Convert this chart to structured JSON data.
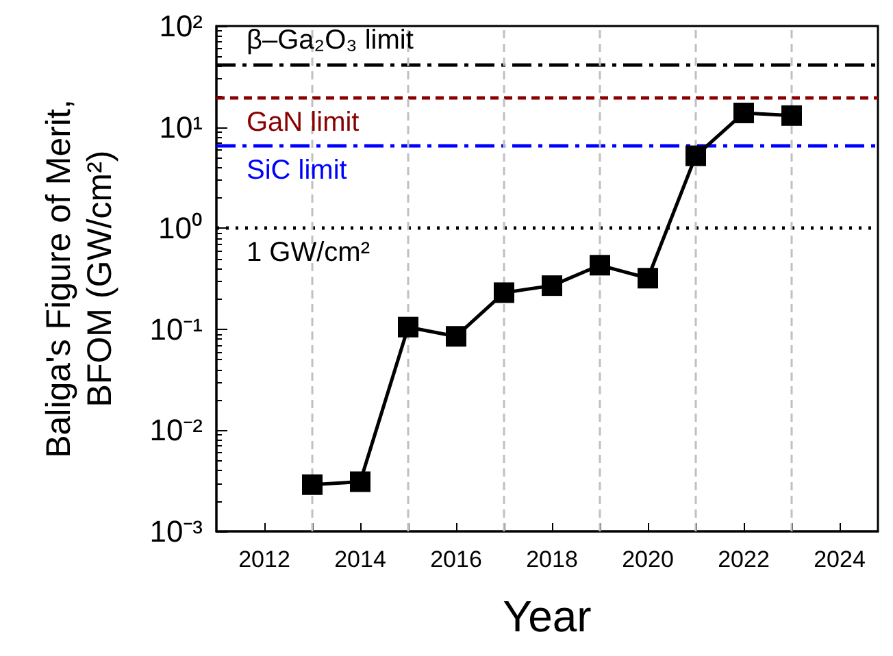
{
  "chart_data": {
    "type": "line",
    "xlabel": "Year",
    "ylabel": "Baliga's Figure of Merit,\nBFOM (GW/cm²)",
    "x": [
      2013,
      2014,
      2015,
      2016,
      2017,
      2018,
      2019,
      2020,
      2021,
      2022,
      2023
    ],
    "series": [
      {
        "color": "#000000",
        "values": [
          0.0029,
          0.0031,
          0.105,
          0.085,
          0.23,
          0.27,
          0.43,
          0.32,
          5.2,
          13.8,
          13
        ]
      }
    ],
    "marker": "square",
    "line_style": "solid",
    "log": "y",
    "grid": false,
    "xlim": [
      2011,
      2024.8
    ],
    "xticks": [
      2012,
      {
        "value": 2013,
        "label": null
      },
      2014,
      {
        "value": 2015,
        "label": null
      },
      2016,
      {
        "value": 2017,
        "label": null
      },
      2018,
      {
        "value": 2019,
        "label": null
      },
      2020,
      {
        "value": 2021,
        "label": null
      },
      2022,
      {
        "value": 2023,
        "label": null
      },
      2024
    ],
    "ylim": [
      0.001,
      100
    ],
    "yticks": [
      {
        "value": 0.001,
        "label": "10⁻³"
      },
      {
        "value": 0.01,
        "label": "10⁻²"
      },
      {
        "value": 0.1,
        "label": "10⁻¹"
      },
      {
        "value": 1,
        "label": "10⁰"
      },
      {
        "value": 10,
        "label": "10¹"
      },
      {
        "value": 100,
        "label": "10²"
      }
    ],
    "ref_lines": [
      {
        "axis": "y",
        "value": 41,
        "label": "β–Ga₂O₃ limit",
        "color": "#000000",
        "line_style": "dashdot"
      },
      {
        "axis": "y",
        "value": 19.5,
        "label": "GaN limit",
        "color": "#8b0000",
        "line_style": "dashed"
      },
      {
        "axis": "y",
        "value": 6.5,
        "label": "SiC limit",
        "color": "#0000ff",
        "line_style": "dashdot"
      },
      {
        "axis": "y",
        "value": 1,
        "label": "1 GW/cm²",
        "color": "#000000",
        "line_style": "dotted"
      },
      {
        "axis": "x",
        "value": 2013,
        "label": null,
        "color": "#c0c0c0",
        "line_style": "dashed"
      },
      {
        "axis": "x",
        "value": 2015,
        "label": null,
        "color": "#c0c0c0",
        "line_style": "dashed"
      },
      {
        "axis": "x",
        "value": 2017,
        "label": null,
        "color": "#c0c0c0",
        "line_style": "dashed"
      },
      {
        "axis": "x",
        "value": 2019,
        "label": null,
        "color": "#c0c0c0",
        "line_style": "dashed"
      },
      {
        "axis": "x",
        "value": 2021,
        "label": null,
        "color": "#c0c0c0",
        "line_style": "dashed"
      },
      {
        "axis": "x",
        "value": 2023,
        "label": null,
        "color": "#c0c0c0",
        "line_style": "dashed"
      }
    ]
  }
}
